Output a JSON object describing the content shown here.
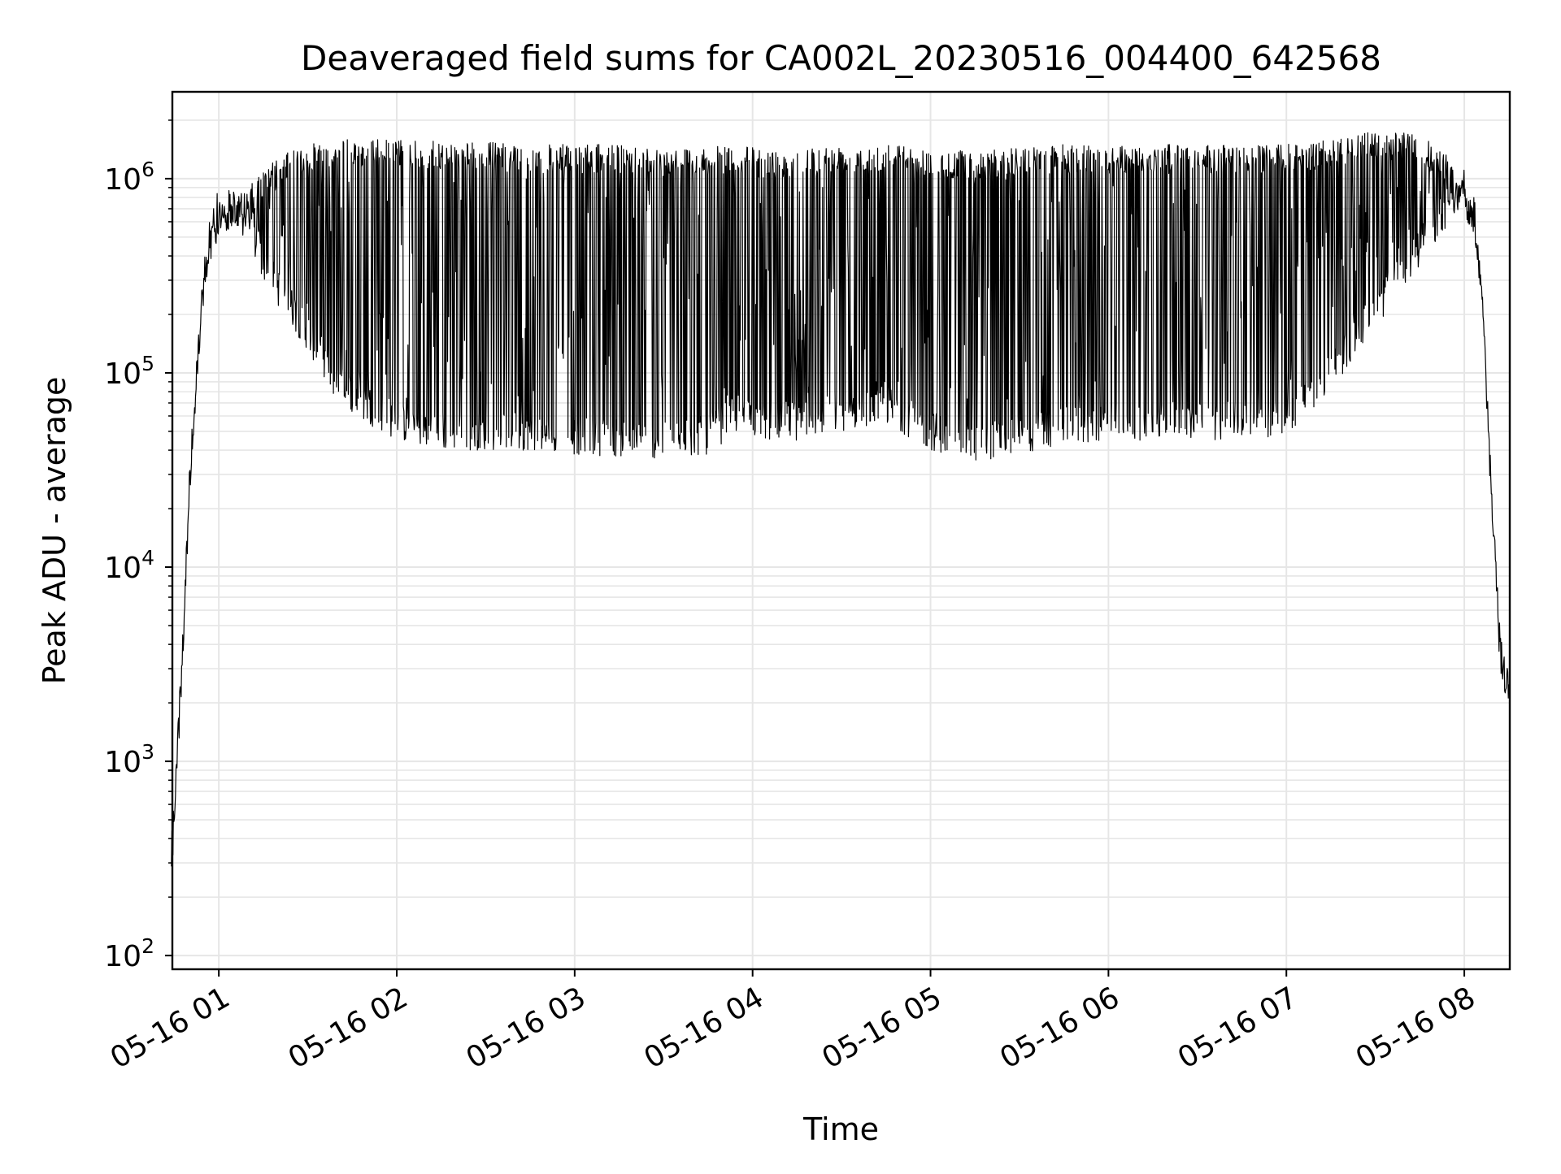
{
  "chart_data": {
    "type": "line",
    "title": "Deaveraged field sums for CA002L_20230516_004400_642568",
    "xlabel": "Time",
    "ylabel": "Peak ADU - average",
    "yscale": "log",
    "ylim": [
      85,
      2800000
    ],
    "xlim": [
      "05-16 00:44:20",
      "05-16 08:15:20"
    ],
    "x_ticks": [
      {
        "label": "05-16 01",
        "value": "05-16 01:00"
      },
      {
        "label": "05-16 02",
        "value": "05-16 02:00"
      },
      {
        "label": "05-16 03",
        "value": "05-16 03:00"
      },
      {
        "label": "05-16 04",
        "value": "05-16 04:00"
      },
      {
        "label": "05-16 05",
        "value": "05-16 05:00"
      },
      {
        "label": "05-16 06",
        "value": "05-16 06:00"
      },
      {
        "label": "05-16 07",
        "value": "05-16 07:00"
      },
      {
        "label": "05-16 08",
        "value": "05-16 08:00"
      }
    ],
    "y_ticks": [
      {
        "base": "10",
        "exp": "2",
        "value": 100
      },
      {
        "base": "10",
        "exp": "3",
        "value": 1000
      },
      {
        "base": "10",
        "exp": "4",
        "value": 10000
      },
      {
        "base": "10",
        "exp": "5",
        "value": 100000
      },
      {
        "base": "10",
        "exp": "6",
        "value": 1000000
      }
    ],
    "grid": true,
    "line_color": "#000000",
    "grid_color": "#e6e6e6",
    "series": [
      {
        "x": [
          "05-16 00:44",
          "05-16 00:47",
          "05-16 00:50",
          "05-16 00:53",
          "05-16 00:56",
          "05-16 00:58",
          "05-16 01:00",
          "05-16 01:05",
          "05-16 01:10",
          "05-16 01:15",
          "05-16 01:20",
          "05-16 01:30",
          "05-16 01:40",
          "05-16 01:50",
          "05-16 02:00",
          "05-16 02:15",
          "05-16 02:30",
          "05-16 02:45",
          "05-16 03:00",
          "05-16 03:15",
          "05-16 03:30",
          "05-16 03:45",
          "05-16 03:55",
          "05-16 04:05",
          "05-16 04:15",
          "05-16 04:30",
          "05-16 04:45",
          "05-16 05:00",
          "05-16 05:15",
          "05-16 05:30",
          "05-16 05:45",
          "05-16 06:00",
          "05-16 06:15",
          "05-16 06:30",
          "05-16 06:45",
          "05-16 07:00",
          "05-16 07:15",
          "05-16 07:30",
          "05-16 07:45",
          "05-16 07:55",
          "05-16 08:00",
          "05-16 08:03",
          "05-16 08:06",
          "05-16 08:09",
          "05-16 08:12",
          "05-16 08:15"
        ],
        "env_high": [
          300,
          3000,
          25000,
          150000,
          400000,
          600000,
          700000,
          800000,
          900000,
          1100000,
          1300000,
          1500000,
          1600000,
          1600000,
          1600000,
          1550000,
          1550000,
          1500000,
          1500000,
          1500000,
          1450000,
          1450000,
          1500000,
          1400000,
          1450000,
          1500000,
          1550000,
          1400000,
          1400000,
          1450000,
          1500000,
          1500000,
          1500000,
          1500000,
          1500000,
          1500000,
          1600000,
          1750000,
          1700000,
          1300000,
          950000,
          700000,
          300000,
          30000,
          5000,
          2200
        ],
        "env_low": [
          250,
          1500,
          20000,
          100000,
          350000,
          500000,
          550000,
          550000,
          450000,
          300000,
          220000,
          130000,
          70000,
          55000,
          45000,
          40000,
          40000,
          40000,
          38000,
          37000,
          36000,
          38000,
          50000,
          45000,
          45000,
          50000,
          55000,
          40000,
          35000,
          38000,
          42000,
          45000,
          45000,
          45000,
          45000,
          48000,
          80000,
          170000,
          350000,
          600000,
          700000,
          600000,
          200000,
          20000,
          3000,
          1800
        ]
      }
    ]
  }
}
